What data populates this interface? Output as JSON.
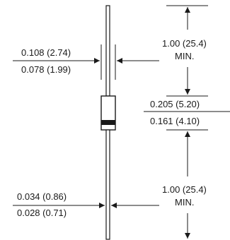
{
  "title": "",
  "dimensions": {
    "lead_diameter_pair": {
      "max": "0.108 (2.74)",
      "min": "0.078 (1.99)"
    },
    "lead_length_top": {
      "value": "1.00 (25.4)",
      "note": "MIN."
    },
    "body_length": {
      "max": "0.205 (5.20)",
      "min": "0.161 (4.10)"
    },
    "wire_diameter": {
      "max": "0.034 (0.86)",
      "min": "0.028 (0.71)"
    },
    "lead_length_bottom": {
      "value": "1.00 (25.4)",
      "note": "MIN."
    }
  },
  "colors": {
    "line": "#1a1a1a",
    "body_fill": "#ffffff",
    "cathode_band": "#1a1a1a"
  }
}
